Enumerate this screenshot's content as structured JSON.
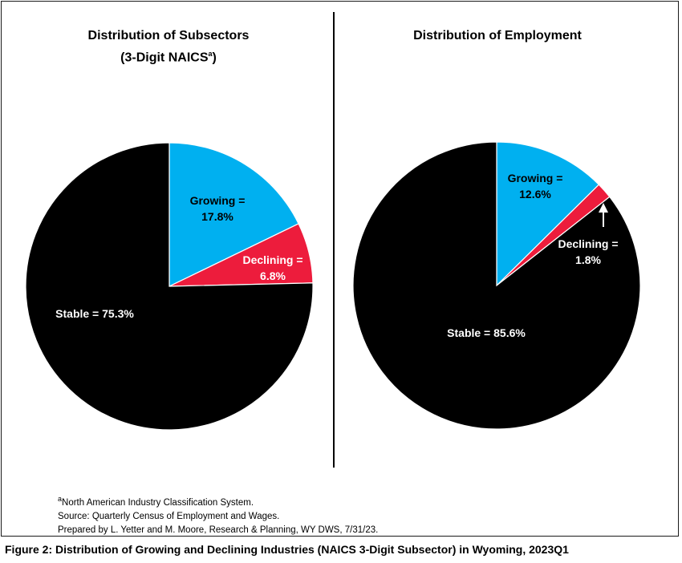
{
  "chart_data": [
    {
      "type": "pie",
      "title": "Distribution of Subsectors",
      "subtitle": "(3-Digit NAICS",
      "subtitle_sup": "a",
      "subtitle_close": ")",
      "slices": [
        {
          "name": "Growing",
          "value": 17.8,
          "label_line1": "Growing =",
          "label_line2": "17.8%",
          "color": "#00b0f0",
          "label_color": "#000000"
        },
        {
          "name": "Declining",
          "value": 6.8,
          "label_line1": "Declining =",
          "label_line2": "6.8%",
          "color": "#ed1c3c",
          "label_color": "#ffffff"
        },
        {
          "name": "Stable",
          "value": 75.3,
          "label_line1": "Stable = 75.3%",
          "label_line2": "",
          "color": "#000000",
          "label_color": "#ffffff"
        }
      ]
    },
    {
      "type": "pie",
      "title": "Distribution of Employment",
      "slices": [
        {
          "name": "Growing",
          "value": 12.6,
          "label_line1": "Growing =",
          "label_line2": "12.6%",
          "color": "#00b0f0",
          "label_color": "#000000"
        },
        {
          "name": "Declining",
          "value": 1.8,
          "label_line1": "Declining =",
          "label_line2": "1.8%",
          "color": "#ed1c3c",
          "label_color": "#ffffff"
        },
        {
          "name": "Stable",
          "value": 85.6,
          "label_line1": "Stable = 85.6%",
          "label_line2": "",
          "color": "#000000",
          "label_color": "#ffffff"
        }
      ]
    }
  ],
  "notes": {
    "footnote_sup": "a",
    "footnote": "North American Industry Classification System.",
    "source": "Source: Quarterly Census of Employment and Wages.",
    "prepared": "Prepared by L. Yetter and M. Moore, Research & Planning, WY DWS, 7/31/23."
  },
  "caption": "Figure 2: Distribution of Growing and Declining Industries (NAICS 3-Digit Subsector) in Wyoming, 2023Q1"
}
